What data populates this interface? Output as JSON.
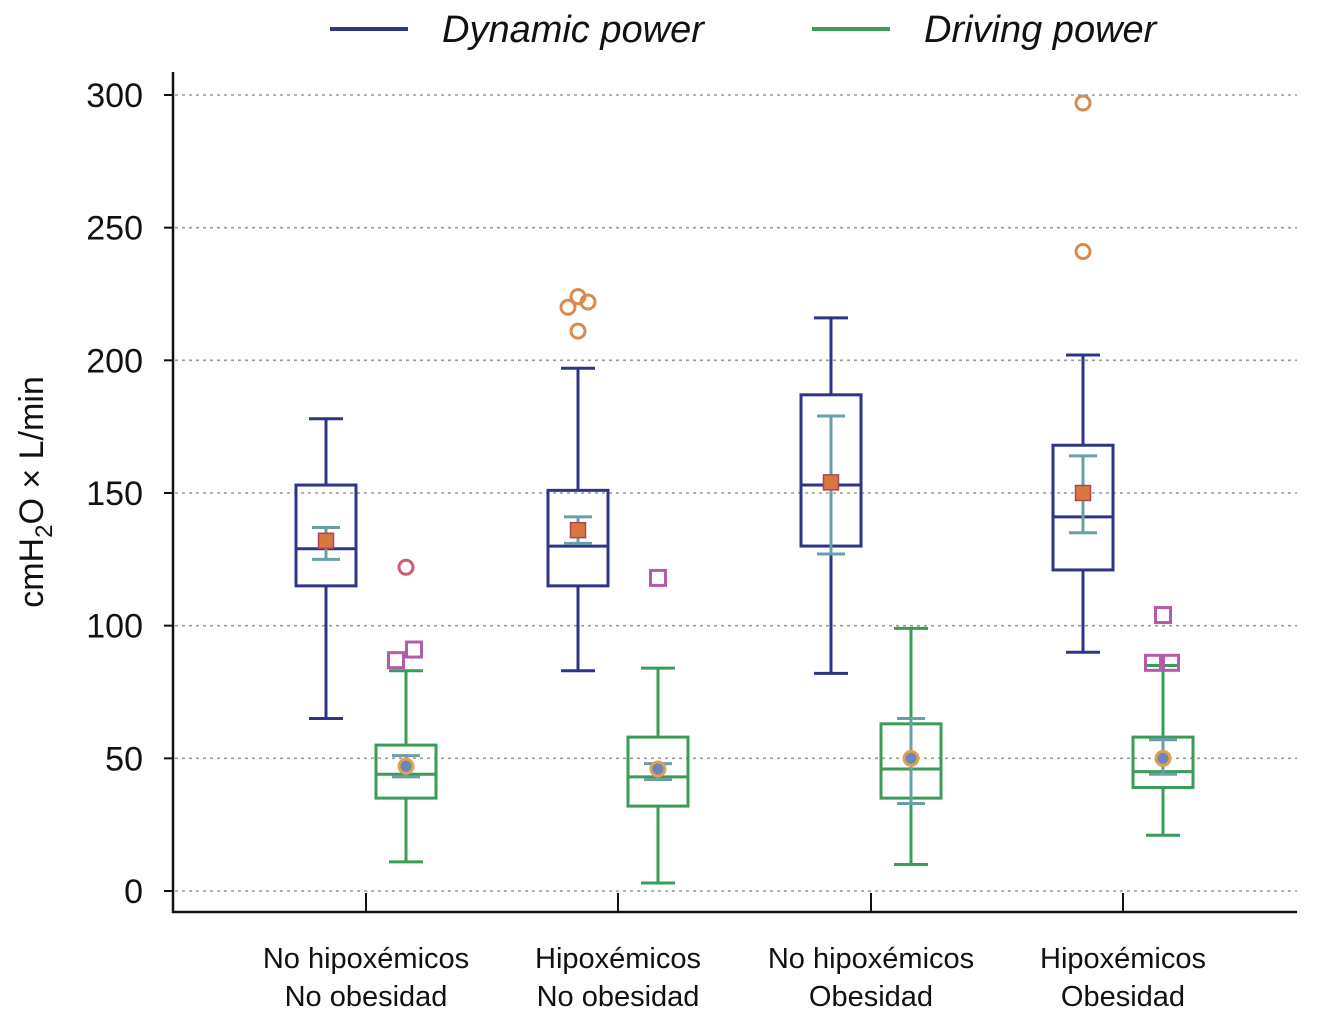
{
  "chart_data": {
    "type": "boxplot",
    "title": "",
    "ylabel": {
      "base": "cmH",
      "subscript": "2",
      "rest": "O × L/min"
    },
    "xlabel": "",
    "ylim": [
      0,
      300
    ],
    "yticks": [
      0,
      50,
      100,
      150,
      200,
      250,
      300
    ],
    "grid": "horizontal dotted",
    "legend_position": "top",
    "categories": [
      {
        "line1": "No hipoxémicos",
        "line2": "No obesidad"
      },
      {
        "line1": "Hipoxémicos",
        "line2": "No obesidad"
      },
      {
        "line1": "No hipoxémicos",
        "line2": "Obesidad"
      },
      {
        "line1": "Hipoxémicos",
        "line2": "Obesidad"
      }
    ],
    "series": [
      {
        "name": "Dynamic power",
        "color": "#2e3588",
        "ci_color": "#6b9fa8",
        "mean_color": "#d9773f",
        "mean_marker": "square",
        "boxes": [
          {
            "whisker_low": 65,
            "q1": 115,
            "median": 129,
            "q3": 153,
            "whisker_high": 178,
            "mean": 132,
            "ci_low": 125,
            "ci_high": 137,
            "outliers": []
          },
          {
            "whisker_low": 83,
            "q1": 115,
            "median": 130,
            "q3": 151,
            "whisker_high": 197,
            "mean": 136,
            "ci_low": 131,
            "ci_high": 141,
            "outliers": [
              {
                "v": 211,
                "marker": "circle",
                "color": "#d98a4c",
                "dx": 0
              },
              {
                "v": 220,
                "marker": "circle",
                "color": "#d98a4c",
                "dx": -10
              },
              {
                "v": 222,
                "marker": "circle",
                "color": "#d98a4c",
                "dx": 10
              },
              {
                "v": 224,
                "marker": "circle",
                "color": "#d98a4c",
                "dx": 0
              }
            ]
          },
          {
            "whisker_low": 82,
            "q1": 130,
            "median": 153,
            "q3": 187,
            "whisker_high": 216,
            "mean": 154,
            "ci_low": 127,
            "ci_high": 179,
            "outliers": []
          },
          {
            "whisker_low": 90,
            "q1": 121,
            "median": 141,
            "q3": 168,
            "whisker_high": 202,
            "mean": 150,
            "ci_low": 135,
            "ci_high": 164,
            "outliers": [
              {
                "v": 241,
                "marker": "circle",
                "color": "#d98a4c",
                "dx": 0
              },
              {
                "v": 297,
                "marker": "circle",
                "color": "#d98a4c",
                "dx": 0
              }
            ]
          }
        ]
      },
      {
        "name": "Driving power",
        "color": "#3a9c58",
        "ci_color": "#6b9fa8",
        "mean_color": "#6b86b8",
        "mean_marker": "circle",
        "boxes": [
          {
            "whisker_low": 11,
            "q1": 35,
            "median": 44,
            "q3": 55,
            "whisker_high": 83,
            "mean": 47,
            "ci_low": 43,
            "ci_high": 51,
            "outliers": [
              {
                "v": 87,
                "marker": "square",
                "color": "#b35ba8",
                "dx": -10
              },
              {
                "v": 91,
                "marker": "square",
                "color": "#b35ba8",
                "dx": 8
              },
              {
                "v": 122,
                "marker": "circle",
                "color": "#d05a6e",
                "dx": 0
              }
            ]
          },
          {
            "whisker_low": 3,
            "q1": 32,
            "median": 43,
            "q3": 58,
            "whisker_high": 84,
            "mean": 46,
            "ci_low": 42,
            "ci_high": 48,
            "outliers": [
              {
                "v": 118,
                "marker": "square",
                "color": "#b35ba8",
                "dx": 0
              }
            ]
          },
          {
            "whisker_low": 10,
            "q1": 35,
            "median": 46,
            "q3": 63,
            "whisker_high": 99,
            "mean": 50,
            "ci_low": 33,
            "ci_high": 65,
            "outliers": []
          },
          {
            "whisker_low": 21,
            "q1": 39,
            "median": 45,
            "q3": 58,
            "whisker_high": 85,
            "mean": 50,
            "ci_low": 44,
            "ci_high": 57,
            "outliers": [
              {
                "v": 86,
                "marker": "square",
                "color": "#b35ba8",
                "dx": -10
              },
              {
                "v": 86,
                "marker": "square",
                "color": "#b35ba8",
                "dx": 8
              },
              {
                "v": 104,
                "marker": "square",
                "color": "#b35ba8",
                "dx": 0
              }
            ]
          }
        ]
      }
    ]
  }
}
